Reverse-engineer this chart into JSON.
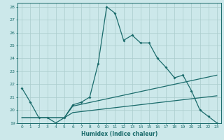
{
  "xlabel": "Humidex (Indice chaleur)",
  "bg_color": "#cce8ea",
  "grid_color": "#aacccc",
  "line_color": "#1a6b6b",
  "xlim": [
    -0.5,
    23.5
  ],
  "ylim": [
    19,
    28.3
  ],
  "yticks": [
    19,
    20,
    21,
    22,
    23,
    24,
    25,
    26,
    27,
    28
  ],
  "xticks": [
    0,
    1,
    2,
    3,
    4,
    5,
    6,
    7,
    8,
    9,
    10,
    11,
    12,
    13,
    14,
    15,
    16,
    17,
    18,
    19,
    20,
    21,
    22,
    23
  ],
  "line1_x": [
    0,
    1,
    2,
    3,
    4,
    5,
    6,
    7,
    8,
    9,
    10,
    11,
    12,
    13,
    14,
    15,
    16,
    17,
    18,
    19,
    20,
    21,
    22,
    23
  ],
  "line1_y": [
    21.7,
    20.6,
    19.4,
    19.4,
    19.0,
    19.4,
    20.4,
    20.6,
    21.0,
    23.6,
    28.0,
    27.5,
    25.4,
    25.8,
    25.2,
    25.2,
    24.0,
    23.3,
    22.5,
    22.7,
    21.5,
    20.0,
    19.5,
    19.0
  ],
  "line2_x": [
    0,
    2,
    3,
    4,
    5,
    6,
    23
  ],
  "line2_y": [
    19.4,
    19.4,
    19.4,
    19.4,
    19.4,
    20.3,
    22.7
  ],
  "line3_x": [
    0,
    2,
    3,
    4,
    5,
    6,
    23
  ],
  "line3_y": [
    19.4,
    19.4,
    19.4,
    19.4,
    19.4,
    19.8,
    21.1
  ]
}
